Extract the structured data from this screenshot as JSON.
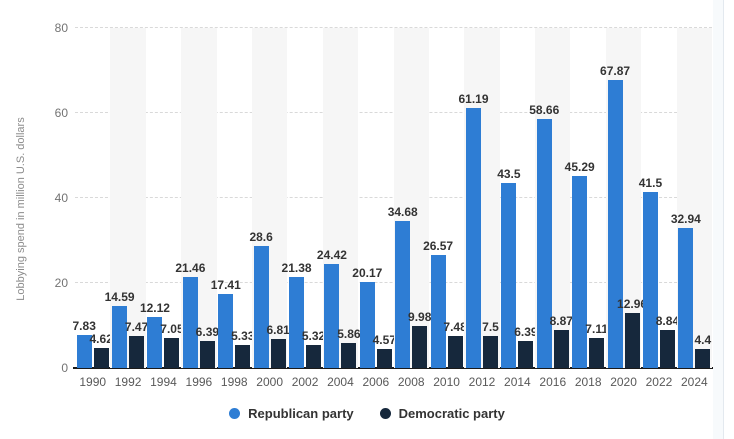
{
  "chart_data": {
    "type": "bar",
    "title": "",
    "ylabel": "Lobbying spend in million U.S. dollars",
    "xlabel": "",
    "ylim": [
      0,
      80
    ],
    "yticks": [
      0,
      20,
      40,
      60,
      80
    ],
    "grid": "horizontal-dashed",
    "legend_position": "bottom",
    "categories": [
      "1990",
      "1992",
      "1994",
      "1996",
      "1998",
      "2000",
      "2002",
      "2004",
      "2006",
      "2008",
      "2010",
      "2012",
      "2014",
      "2016",
      "2018",
      "2020",
      "2022",
      "2024"
    ],
    "series": [
      {
        "name": "Republican party",
        "color": "#2e7dd4",
        "values": [
          7.83,
          14.59,
          12.12,
          21.46,
          17.41,
          28.6,
          21.38,
          24.42,
          20.17,
          34.68,
          26.57,
          61.19,
          43.5,
          58.66,
          45.29,
          67.87,
          41.5,
          32.94
        ]
      },
      {
        "name": "Democratic party",
        "color": "#16283c",
        "values": [
          4.62,
          7.47,
          7.05,
          6.39,
          5.33,
          6.81,
          5.32,
          5.86,
          4.57,
          9.98,
          7.48,
          7.5,
          6.39,
          8.87,
          7.11,
          12.96,
          8.84,
          4.4
        ]
      }
    ]
  },
  "style_colors": {
    "stripe_band": "#f6f6f6",
    "gridline": "#d9d9d9",
    "axis_line": "#1a1a1a",
    "tick_text": "#737373",
    "value_text": "#333333"
  }
}
